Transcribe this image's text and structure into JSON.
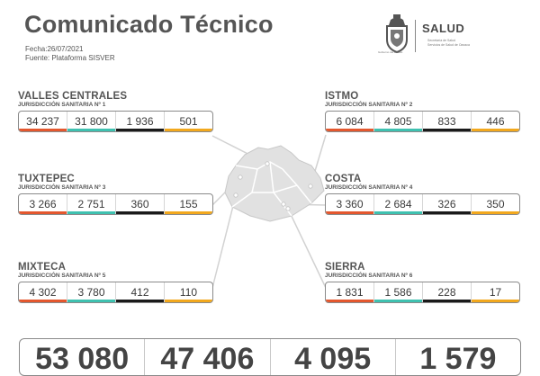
{
  "header": {
    "title": "Comunicado Técnico",
    "date": "Fecha:26/07/2021",
    "source": "Fuente: Plataforma SISVER"
  },
  "logo": {
    "brand": "SALUD",
    "line1": "Secretaría de Salud",
    "line2": "Servicios de Salud de Oaxaca",
    "emblem_caption": "Gobierno del Estado"
  },
  "colors": {
    "col1": "#e4572e",
    "col2": "#3fc1b0",
    "col3": "#1a1a1a",
    "col4": "#f2a81d"
  },
  "regions": [
    {
      "name": "VALLES CENTRALES",
      "jurisdiction": "JURISDICCIÓN SANITARIA Nº 1",
      "values": [
        "34 237",
        "31 800",
        "1 936",
        "501"
      ]
    },
    {
      "name": "ISTMO",
      "jurisdiction": "JURISDICCIÓN SANITARIA Nº 2",
      "values": [
        "6 084",
        "4 805",
        "833",
        "446"
      ]
    },
    {
      "name": "TUXTEPEC",
      "jurisdiction": "JURISDICCIÓN SANITARIA Nº 3",
      "values": [
        "3 266",
        "2 751",
        "360",
        "155"
      ]
    },
    {
      "name": "COSTA",
      "jurisdiction": "JURISDICCIÓN SANITARIA Nº 4",
      "values": [
        "3 360",
        "2 684",
        "326",
        "350"
      ]
    },
    {
      "name": "MIXTECA",
      "jurisdiction": "JURISDICCIÓN SANITARIA Nº 5",
      "values": [
        "4 302",
        "3 780",
        "412",
        "110"
      ]
    },
    {
      "name": "SIERRA",
      "jurisdiction": "JURISDICCIÓN SANITARIA Nº 6",
      "values": [
        "1 831",
        "1 586",
        "228",
        "17"
      ]
    }
  ],
  "totals": [
    "53 080",
    "47 406",
    "4 095",
    "1 579"
  ]
}
